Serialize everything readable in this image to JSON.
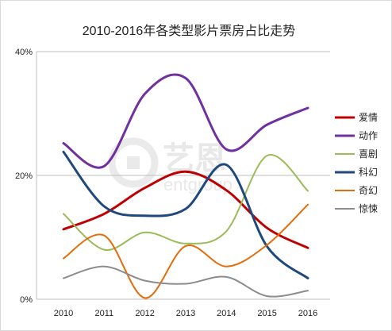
{
  "chart_data": {
    "type": "line",
    "title": "2010-2016年各类型影片票房占比走势",
    "xlabel": "",
    "ylabel": "",
    "categories": [
      "2010",
      "2011",
      "2012",
      "2013",
      "2014",
      "2015",
      "2016"
    ],
    "ylim": [
      0,
      40
    ],
    "yticks": [
      {
        "value": 0,
        "label": "0%"
      },
      {
        "value": 20,
        "label": "20%"
      },
      {
        "value": 40,
        "label": "40%"
      }
    ],
    "grid": true,
    "smooth": true,
    "legend_position": "right",
    "series": [
      {
        "name": "爱情",
        "color": "#c00000",
        "width": 3,
        "values": [
          11.3,
          13.8,
          18.0,
          20.6,
          17.6,
          11.5,
          8.3
        ]
      },
      {
        "name": "动作",
        "color": "#7030a0",
        "width": 3,
        "values": [
          25.2,
          21.5,
          33.2,
          35.7,
          24.2,
          28.2,
          30.9
        ]
      },
      {
        "name": "喜剧",
        "color": "#9bbb59",
        "width": 2,
        "values": [
          13.8,
          8.0,
          10.8,
          9.0,
          11.0,
          23.2,
          17.5
        ]
      },
      {
        "name": "科幻",
        "color": "#1f497d",
        "width": 3,
        "values": [
          23.8,
          15.0,
          13.5,
          14.6,
          21.7,
          8.5,
          3.4
        ]
      },
      {
        "name": "奇幻",
        "color": "#e46c0a",
        "width": 2,
        "values": [
          6.6,
          10.3,
          0.2,
          8.6,
          5.3,
          8.8,
          15.3
        ]
      },
      {
        "name": "惊悚",
        "color": "#8c8c8c",
        "width": 2,
        "values": [
          3.4,
          5.3,
          3.0,
          2.5,
          3.6,
          0.5,
          1.4
        ]
      }
    ]
  },
  "watermark": {
    "main": "艺恩",
    "sub": "entgroup"
  }
}
